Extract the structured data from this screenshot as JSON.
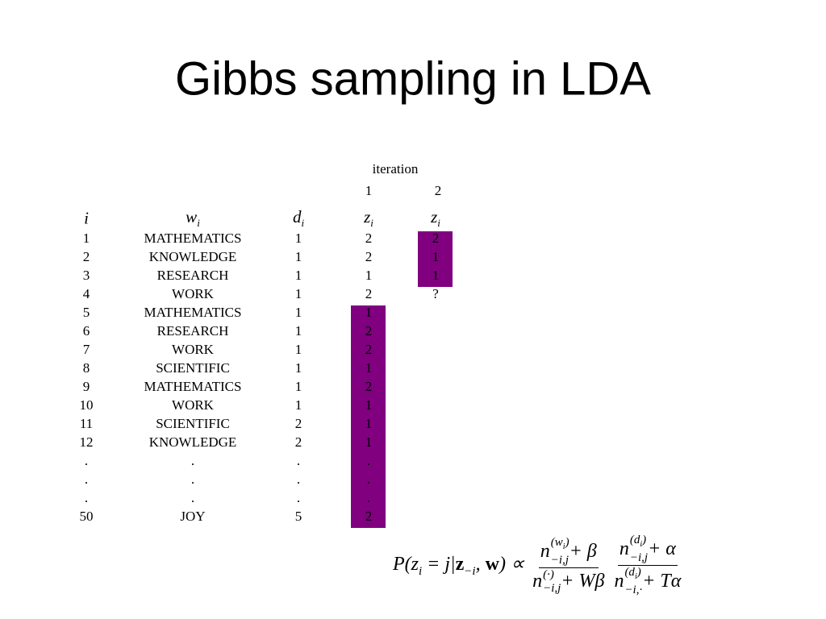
{
  "title": "Gibbs sampling in LDA",
  "table": {
    "group_header": "iteration",
    "iterations": [
      "1",
      "2"
    ],
    "columns": [
      {
        "base": "i"
      },
      {
        "base": "w",
        "sub": "i"
      },
      {
        "base": "d",
        "sub": "i"
      },
      {
        "base": "z",
        "sub": "i"
      },
      {
        "base": "z",
        "sub": "i"
      }
    ],
    "rows": [
      [
        "1",
        "MATHEMATICS",
        "1",
        "2",
        "2"
      ],
      [
        "2",
        "KNOWLEDGE",
        "1",
        "2",
        "1"
      ],
      [
        "3",
        "RESEARCH",
        "1",
        "1",
        "1"
      ],
      [
        "4",
        "WORK",
        "1",
        "2",
        "?"
      ],
      [
        "5",
        "MATHEMATICS",
        "1",
        "1"
      ],
      [
        "6",
        "RESEARCH",
        "1",
        "2"
      ],
      [
        "7",
        "WORK",
        "1",
        "2"
      ],
      [
        "8",
        "SCIENTIFIC",
        "1",
        "1"
      ],
      [
        "9",
        "MATHEMATICS",
        "1",
        "2"
      ],
      [
        "10",
        "WORK",
        "1",
        "1"
      ],
      [
        "11",
        "SCIENTIFIC",
        "2",
        "1"
      ],
      [
        "12",
        "KNOWLEDGE",
        "2",
        "1"
      ],
      [
        ".",
        ".",
        ".",
        "."
      ],
      [
        ".",
        ".",
        ".",
        "."
      ],
      [
        ".",
        ".",
        ".",
        "."
      ],
      [
        "50",
        "JOY",
        "5",
        "2"
      ]
    ]
  },
  "formula": {
    "lhs": [
      "P(z",
      "i",
      " = j|",
      "z",
      "−i",
      ", ",
      "w",
      ") ∝"
    ],
    "fractions": [
      {
        "numerator": {
          "base": "n",
          "sup": [
            "(w",
            "i",
            ")"
          ],
          "sub": "−i,j",
          "rest": " + β"
        },
        "denominator": {
          "base": "n",
          "sup": [
            "(·)"
          ],
          "sub": "−i,j",
          "rest": " + Wβ"
        }
      },
      {
        "numerator": {
          "base": "n",
          "sup": [
            "(d",
            "i",
            ")"
          ],
          "sub": "−i,j",
          "rest": " + α"
        },
        "denominator": {
          "base": "n",
          "sup": [
            "(d",
            "i",
            ")"
          ],
          "sub": "−i,·",
          "rest": " + Tα"
        }
      }
    ]
  }
}
